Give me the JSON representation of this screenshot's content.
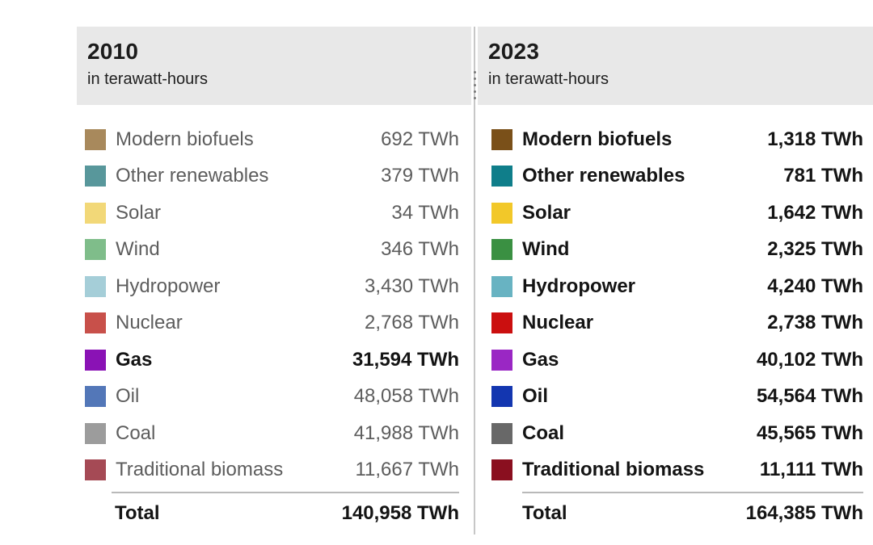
{
  "panels": [
    {
      "year": "2010",
      "subtitle": "in terawatt-hours",
      "rows": [
        {
          "label": "Modern biofuels",
          "value": "692 TWh",
          "color": "#a8895c",
          "bold": false
        },
        {
          "label": "Other renewables",
          "value": "379 TWh",
          "color": "#58979b",
          "bold": false
        },
        {
          "label": "Solar",
          "value": "34 TWh",
          "color": "#f2d878",
          "bold": false
        },
        {
          "label": "Wind",
          "value": "346 TWh",
          "color": "#7fbd8a",
          "bold": false
        },
        {
          "label": "Hydropower",
          "value": "3,430 TWh",
          "color": "#a5ced8",
          "bold": false
        },
        {
          "label": "Nuclear",
          "value": "2,768 TWh",
          "color": "#c8504a",
          "bold": false
        },
        {
          "label": "Gas",
          "value": "31,594 TWh",
          "color": "#8a12b5",
          "bold": true
        },
        {
          "label": "Oil",
          "value": "48,058 TWh",
          "color": "#5377b8",
          "bold": false
        },
        {
          "label": "Coal",
          "value": "41,988 TWh",
          "color": "#9c9c9c",
          "bold": false
        },
        {
          "label": "Traditional biomass",
          "value": "11,667 TWh",
          "color": "#a54a55",
          "bold": false
        }
      ],
      "total_label": "Total",
      "total_value": "140,958 TWh"
    },
    {
      "year": "2023",
      "subtitle": "in terawatt-hours",
      "rows": [
        {
          "label": "Modern biofuels",
          "value": "1,318 TWh",
          "color": "#7a5019",
          "bold": true
        },
        {
          "label": "Other renewables",
          "value": "781 TWh",
          "color": "#0f7e8a",
          "bold": true
        },
        {
          "label": "Solar",
          "value": "1,642 TWh",
          "color": "#f2c829",
          "bold": true
        },
        {
          "label": "Wind",
          "value": "2,325 TWh",
          "color": "#3a9042",
          "bold": true
        },
        {
          "label": "Hydropower",
          "value": "4,240 TWh",
          "color": "#68b3c2",
          "bold": true
        },
        {
          "label": "Nuclear",
          "value": "2,738 TWh",
          "color": "#cb0f0f",
          "bold": true
        },
        {
          "label": "Gas",
          "value": "40,102 TWh",
          "color": "#9a27c4",
          "bold": true
        },
        {
          "label": "Oil",
          "value": "54,564 TWh",
          "color": "#1336b0",
          "bold": true
        },
        {
          "label": "Coal",
          "value": "45,565 TWh",
          "color": "#686868",
          "bold": true
        },
        {
          "label": "Traditional biomass",
          "value": "11,111 TWh",
          "color": "#8a0f1f",
          "bold": true
        }
      ],
      "total_label": "Total",
      "total_value": "164,385 TWh"
    }
  ],
  "chart_data": {
    "type": "table",
    "categories": [
      "Modern biofuels",
      "Other renewables",
      "Solar",
      "Wind",
      "Hydropower",
      "Nuclear",
      "Gas",
      "Oil",
      "Coal",
      "Traditional biomass"
    ],
    "series": [
      {
        "name": "2010",
        "unit": "TWh",
        "values": [
          692,
          379,
          34,
          346,
          3430,
          2768,
          31594,
          48058,
          41988,
          11667
        ],
        "total": 140958
      },
      {
        "name": "2023",
        "unit": "TWh",
        "values": [
          1318,
          781,
          1642,
          2325,
          4240,
          2738,
          40102,
          54564,
          45565,
          11111
        ],
        "total": 164385
      }
    ],
    "subtitle": "in terawatt-hours",
    "highlighted_category_2010": "Gas"
  }
}
